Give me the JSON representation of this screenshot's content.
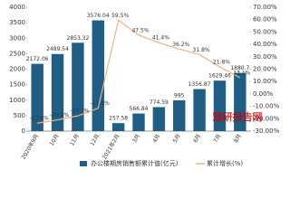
{
  "chart_data": {
    "type": "bar",
    "categories": [
      "2020年9月",
      "10月",
      "11月",
      "12月",
      "2021年2月",
      "3月",
      "4月",
      "5月",
      "6月",
      "7月",
      "8月"
    ],
    "series": [
      {
        "name": "办公楼期房销售额累计值(亿元)",
        "type": "bar",
        "color": "#1f5f86",
        "values": [
          2172.06,
          2489.54,
          2853.32,
          3576.04,
          257.58,
          566.84,
          774.59,
          995,
          1356.87,
          1629.46,
          1880.7
        ]
      },
      {
        "name": "累计增长(%)",
        "type": "line",
        "axis": "y2",
        "color": "#f4b183",
        "values": [
          -23.6,
          -20.9,
          -17.7,
          -11.5,
          59.5,
          47.5,
          41.4,
          36.2,
          31.8,
          21.8,
          13.1
        ],
        "value_labels": [
          "-23.6%",
          "-20.9%",
          "-17.7%",
          "-11.5%",
          "59.5%",
          "47.5%",
          "41.4%",
          "36.2%",
          "31.8%",
          "21.8%",
          "13.1%"
        ]
      }
    ],
    "ylim": [
      0,
      4000
    ],
    "yticks": [
      0,
      500,
      1000,
      1500,
      2000,
      2500,
      3000,
      3500,
      4000
    ],
    "y2lim": [
      -30,
      70
    ],
    "y2ticks": [
      {
        "value": -30,
        "label": "-30.00%"
      },
      {
        "value": -20,
        "label": "-20.00%"
      },
      {
        "value": -10,
        "label": "-10.00%"
      },
      {
        "value": 0,
        "label": "0.00%"
      },
      {
        "value": 10,
        "label": "10.00%"
      },
      {
        "value": 20,
        "label": "20.00%"
      },
      {
        "value": 30,
        "label": "30.00%"
      },
      {
        "value": 40,
        "label": "40.00%"
      },
      {
        "value": 50,
        "label": "50.00%"
      },
      {
        "value": 60,
        "label": "60.00%"
      },
      {
        "value": 70,
        "label": "70.00%"
      }
    ],
    "watermark": "观研报告网"
  }
}
